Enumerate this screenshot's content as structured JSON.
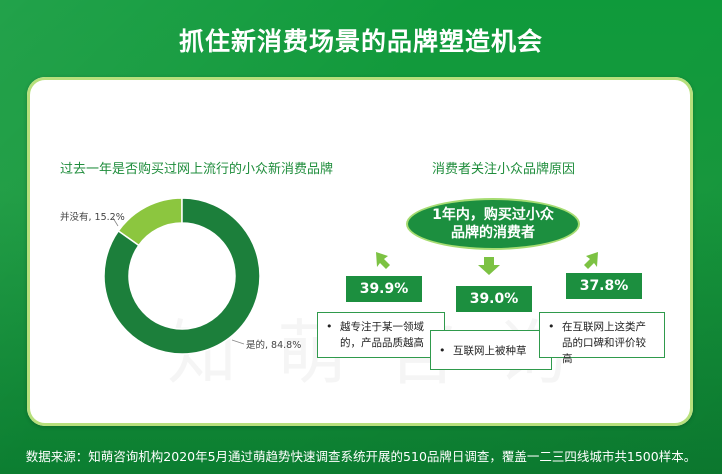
{
  "header": {
    "title": "抓住新消费场景的品牌塑造机会"
  },
  "left": {
    "section_title": "过去一年是否购买过网上流行的小众新消费品牌"
  },
  "right": {
    "section_title": "消费者关注小众品牌原因",
    "bubble_text": "1年内，购买过小众品牌的消费者",
    "reasons": [
      {
        "pct": "39.9%",
        "text": "越专注于某一领域的，产品品质越高"
      },
      {
        "pct": "39.0%",
        "text": "互联网上被种草"
      },
      {
        "pct": "37.8%",
        "text": "在互联网上这类产品的口碑和评价较高"
      }
    ]
  },
  "chart_data": {
    "type": "pie",
    "categories": [
      "是的",
      "并没有"
    ],
    "values": [
      84.8,
      15.2
    ],
    "labels": [
      "是的, 84.8%",
      "并没有, 15.2%"
    ],
    "colors": [
      "#1c7f3b",
      "#8cc63f"
    ],
    "donut": true
  },
  "footer": {
    "source": "数据来源：知萌咨询机构2020年5月通过萌趋势快速调查系统开展的510品牌日调查，覆盖一二三四线城市共1500样本。"
  },
  "watermark": "知萌咨询"
}
